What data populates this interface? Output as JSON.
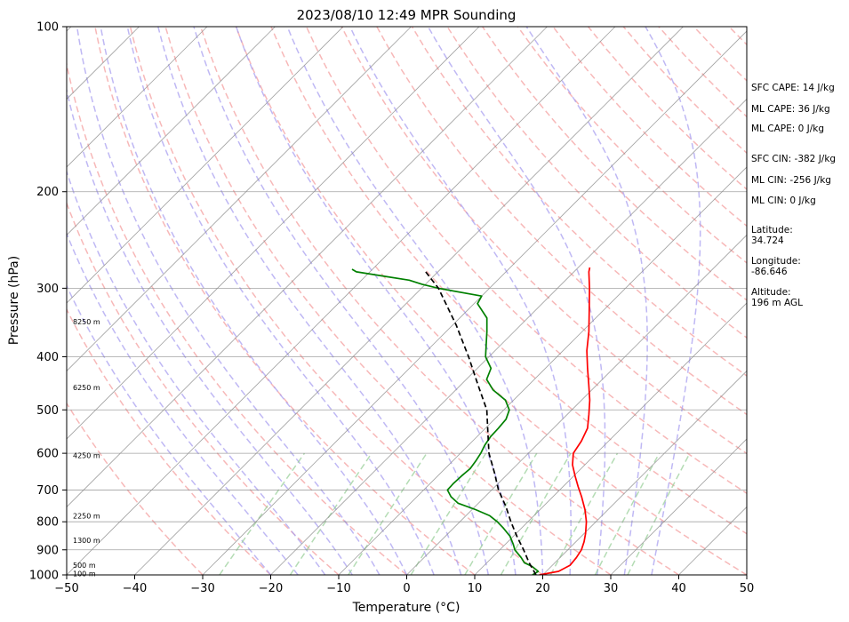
{
  "chart_data": {
    "type": "line",
    "title": "2023/08/10 12:49 MPR Sounding",
    "xlabel": "Temperature (°C)",
    "ylabel": "Pressure (hPa)",
    "xlim": [
      -50,
      50
    ],
    "ylim": [
      1000,
      100
    ],
    "y_scale": "log",
    "skew": true,
    "grid": true,
    "x_ticks": [
      -50,
      -40,
      -30,
      -20,
      -10,
      0,
      10,
      20,
      30,
      40,
      50
    ],
    "y_ticks": [
      1000,
      900,
      800,
      700,
      600,
      500,
      400,
      300,
      200,
      100
    ],
    "series": [
      {
        "key": "temperature",
        "color": "#ff0000",
        "points": [
          [
            1000,
            19.5
          ],
          [
            985,
            21.8
          ],
          [
            960,
            22.6
          ],
          [
            930,
            22.4
          ],
          [
            900,
            22.0
          ],
          [
            870,
            21.2
          ],
          [
            840,
            20.2
          ],
          [
            800,
            18.6
          ],
          [
            760,
            16.6
          ],
          [
            720,
            14.2
          ],
          [
            690,
            12.2
          ],
          [
            660,
            10.2
          ],
          [
            630,
            8.2
          ],
          [
            600,
            6.6
          ],
          [
            570,
            6.0
          ],
          [
            540,
            5.0
          ],
          [
            510,
            3.2
          ],
          [
            480,
            1.2
          ],
          [
            450,
            -1.2
          ],
          [
            420,
            -3.8
          ],
          [
            390,
            -6.5
          ],
          [
            360,
            -9.0
          ],
          [
            330,
            -12.0
          ],
          [
            300,
            -15.3
          ],
          [
            280,
            -17.8
          ],
          [
            275,
            -18.3
          ]
        ]
      },
      {
        "key": "dewpoint",
        "color": "#008000",
        "points": [
          [
            1000,
            18.5
          ],
          [
            985,
            18.8
          ],
          [
            965,
            17.2
          ],
          [
            950,
            15.5
          ],
          [
            930,
            14.3
          ],
          [
            900,
            12.2
          ],
          [
            880,
            11.2
          ],
          [
            850,
            9.5
          ],
          [
            820,
            7.2
          ],
          [
            800,
            5.5
          ],
          [
            780,
            3.5
          ],
          [
            760,
            0.5
          ],
          [
            740,
            -3.0
          ],
          [
            720,
            -5.0
          ],
          [
            700,
            -6.5
          ],
          [
            680,
            -6.6
          ],
          [
            660,
            -6.5
          ],
          [
            640,
            -6.3
          ],
          [
            620,
            -6.6
          ],
          [
            600,
            -7.0
          ],
          [
            580,
            -7.6
          ],
          [
            560,
            -8.0
          ],
          [
            540,
            -8.1
          ],
          [
            520,
            -8.3
          ],
          [
            500,
            -9.2
          ],
          [
            480,
            -11.2
          ],
          [
            460,
            -14.5
          ],
          [
            440,
            -17.0
          ],
          [
            420,
            -18.0
          ],
          [
            400,
            -20.5
          ],
          [
            380,
            -22.2
          ],
          [
            360,
            -24.0
          ],
          [
            340,
            -26.0
          ],
          [
            320,
            -29.5
          ],
          [
            310,
            -30.0
          ],
          [
            300,
            -37.5
          ],
          [
            295,
            -40.5
          ],
          [
            290,
            -43.0
          ],
          [
            285,
            -47.5
          ],
          [
            280,
            -52.0
          ],
          [
            277,
            -53.0
          ]
        ]
      },
      {
        "key": "parcel",
        "color": "#000000",
        "points": [
          [
            1000,
            19.0
          ],
          [
            950,
            16.2
          ],
          [
            900,
            13.5
          ],
          [
            850,
            10.5
          ],
          [
            800,
            7.5
          ],
          [
            750,
            4.5
          ],
          [
            700,
            1.0
          ],
          [
            650,
            -2.2
          ],
          [
            600,
            -5.8
          ],
          [
            550,
            -9.0
          ],
          [
            500,
            -12.5
          ],
          [
            450,
            -17.5
          ],
          [
            400,
            -23.0
          ],
          [
            350,
            -29.5
          ],
          [
            300,
            -37.5
          ],
          [
            280,
            -41.8
          ]
        ]
      }
    ],
    "height_labels": [
      {
        "p": 994,
        "text": "100 m"
      },
      {
        "p": 960,
        "text": "500 m"
      },
      {
        "p": 865,
        "text": "1300 m"
      },
      {
        "p": 780,
        "text": "2250 m"
      },
      {
        "p": 605,
        "text": "4250 m"
      },
      {
        "p": 455,
        "text": "6250 m"
      },
      {
        "p": 345,
        "text": "8250 m"
      }
    ]
  },
  "stats": {
    "sfc_cape": "SFC CAPE: 14 J/kg",
    "ml_cape_1": "ML CAPE: 36 J/kg",
    "ml_cape_2": "ML CAPE: 0 J/kg",
    "sfc_cin": "SFC CIN: -382 J/kg",
    "ml_cin_1": "ML CIN: -256 J/kg",
    "ml_cin_2": "ML CIN: 0 J/kg",
    "latitude_label": "Latitude:",
    "latitude_value": "34.724",
    "longitude_label": "Longitude:",
    "longitude_value": "-86.646",
    "altitude_label": "Altitude:",
    "altitude_value": "196 m AGL"
  },
  "colors": {
    "dry_adiabat": "#f4a0a0",
    "moist_adiabat": "#a9a0f0",
    "mixing_ratio": "#9bd09b",
    "isotherm": "#8c8c8c",
    "isobar": "#8c8c8c"
  }
}
